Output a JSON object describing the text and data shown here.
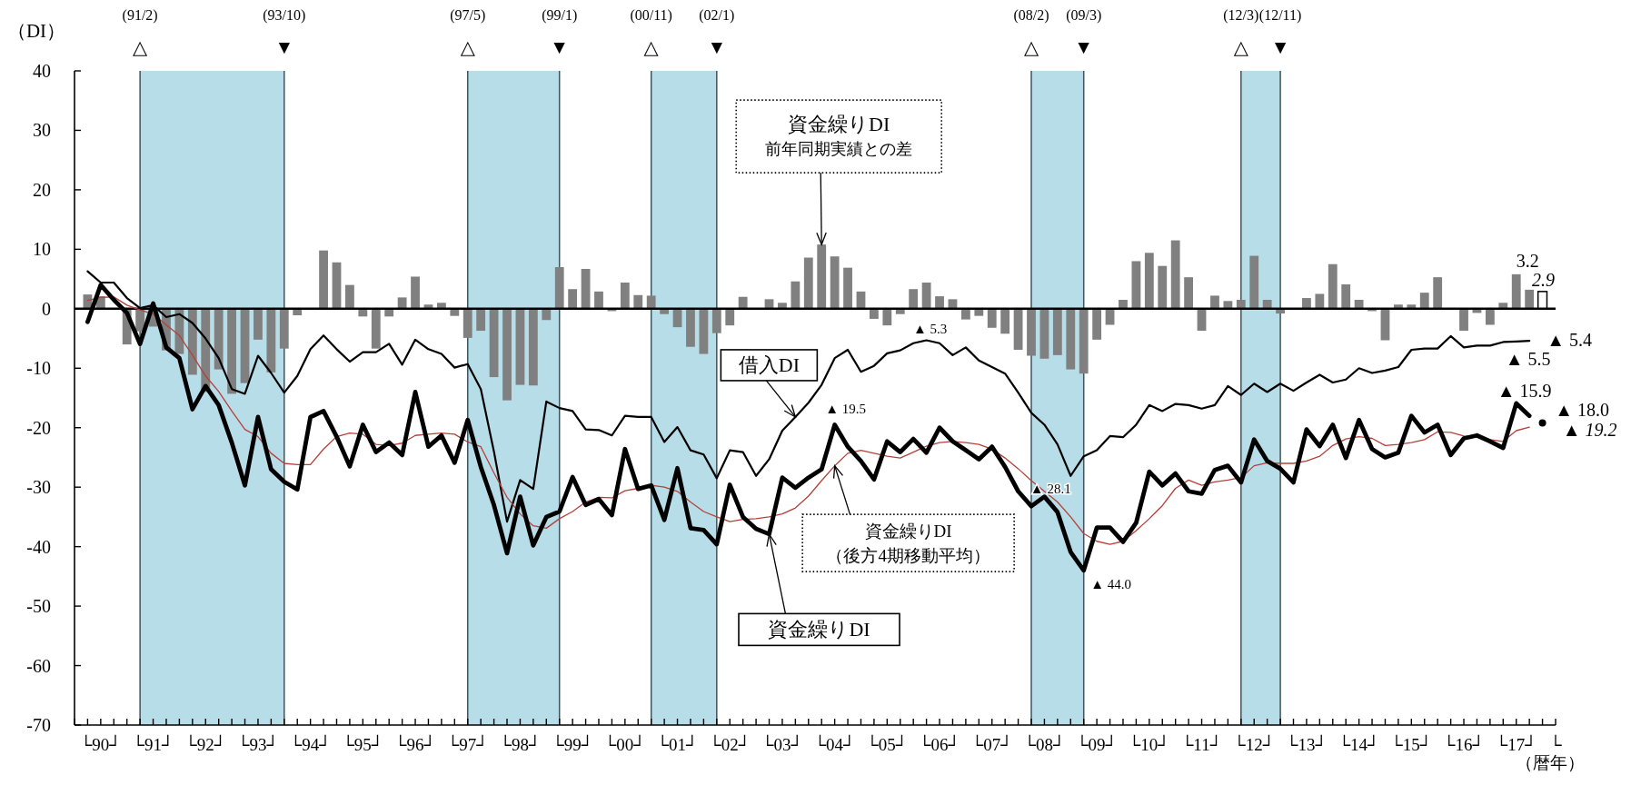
{
  "chart_data": {
    "type": "line",
    "ylabel": "（DI）",
    "xlabel": "（暦年）",
    "xlim": [
      "1990-01",
      "2018-04"
    ],
    "ylim": [
      -70,
      40
    ],
    "yticks": [
      -70,
      -60,
      -50,
      -40,
      -30,
      -20,
      -10,
      0,
      10,
      20,
      30,
      40
    ],
    "xticks": [
      {
        "value": "1990-01",
        "label": null
      },
      {
        "value": "1990-04",
        "label": null
      },
      {
        "value": "1990-07",
        "label": "└90┘"
      },
      {
        "value": "1990-10",
        "label": null
      },
      {
        "value": "1991-01",
        "label": null
      },
      {
        "value": "1991-04",
        "label": null
      },
      {
        "value": "1991-07",
        "label": "└91┘"
      },
      {
        "value": "1991-10",
        "label": null
      },
      {
        "value": "1992-01",
        "label": null
      },
      {
        "value": "1992-04",
        "label": null
      },
      {
        "value": "1992-07",
        "label": "└92┘"
      },
      {
        "value": "1992-10",
        "label": null
      },
      {
        "value": "1993-01",
        "label": null
      },
      {
        "value": "1993-04",
        "label": null
      },
      {
        "value": "1993-07",
        "label": "└93┘"
      },
      {
        "value": "1993-10",
        "label": null
      },
      {
        "value": "1994-01",
        "label": null
      },
      {
        "value": "1994-04",
        "label": null
      },
      {
        "value": "1994-07",
        "label": "└94┘"
      },
      {
        "value": "1994-10",
        "label": null
      },
      {
        "value": "1995-01",
        "label": null
      },
      {
        "value": "1995-04",
        "label": null
      },
      {
        "value": "1995-07",
        "label": "└95┘"
      },
      {
        "value": "1995-10",
        "label": null
      },
      {
        "value": "1996-01",
        "label": null
      },
      {
        "value": "1996-04",
        "label": null
      },
      {
        "value": "1996-07",
        "label": "└96┘"
      },
      {
        "value": "1996-10",
        "label": null
      },
      {
        "value": "1997-01",
        "label": null
      },
      {
        "value": "1997-04",
        "label": null
      },
      {
        "value": "1997-07",
        "label": "└97┘"
      },
      {
        "value": "1997-10",
        "label": null
      },
      {
        "value": "1998-01",
        "label": null
      },
      {
        "value": "1998-04",
        "label": null
      },
      {
        "value": "1998-07",
        "label": "└98┘"
      },
      {
        "value": "1998-10",
        "label": null
      },
      {
        "value": "1999-01",
        "label": null
      },
      {
        "value": "1999-04",
        "label": null
      },
      {
        "value": "1999-07",
        "label": "└99┘"
      },
      {
        "value": "1999-10",
        "label": null
      },
      {
        "value": "2000-01",
        "label": null
      },
      {
        "value": "2000-04",
        "label": null
      },
      {
        "value": "2000-07",
        "label": "└00┘"
      },
      {
        "value": "2000-10",
        "label": null
      },
      {
        "value": "2001-01",
        "label": null
      },
      {
        "value": "2001-04",
        "label": null
      },
      {
        "value": "2001-07",
        "label": "└01┘"
      },
      {
        "value": "2001-10",
        "label": null
      },
      {
        "value": "2002-01",
        "label": null
      },
      {
        "value": "2002-04",
        "label": null
      },
      {
        "value": "2002-07",
        "label": "└02┘"
      },
      {
        "value": "2002-10",
        "label": null
      },
      {
        "value": "2003-01",
        "label": null
      },
      {
        "value": "2003-04",
        "label": null
      },
      {
        "value": "2003-07",
        "label": "└03┘"
      },
      {
        "value": "2003-10",
        "label": null
      },
      {
        "value": "2004-01",
        "label": null
      },
      {
        "value": "2004-04",
        "label": null
      },
      {
        "value": "2004-07",
        "label": "└04┘"
      },
      {
        "value": "2004-10",
        "label": null
      },
      {
        "value": "2005-01",
        "label": null
      },
      {
        "value": "2005-04",
        "label": null
      },
      {
        "value": "2005-07",
        "label": "└05┘"
      },
      {
        "value": "2005-10",
        "label": null
      },
      {
        "value": "2006-01",
        "label": null
      },
      {
        "value": "2006-04",
        "label": null
      },
      {
        "value": "2006-07",
        "label": "└06┘"
      },
      {
        "value": "2006-10",
        "label": null
      },
      {
        "value": "2007-01",
        "label": null
      },
      {
        "value": "2007-04",
        "label": null
      },
      {
        "value": "2007-07",
        "label": "└07┘"
      },
      {
        "value": "2007-10",
        "label": null
      },
      {
        "value": "2008-01",
        "label": null
      },
      {
        "value": "2008-04",
        "label": null
      },
      {
        "value": "2008-07",
        "label": "└08┘"
      },
      {
        "value": "2008-10",
        "label": null
      },
      {
        "value": "2009-01",
        "label": null
      },
      {
        "value": "2009-04",
        "label": null
      },
      {
        "value": "2009-07",
        "label": "└09┘"
      },
      {
        "value": "2009-10",
        "label": null
      },
      {
        "value": "2010-01",
        "label": null
      },
      {
        "value": "2010-04",
        "label": null
      },
      {
        "value": "2010-07",
        "label": "└10┘"
      },
      {
        "value": "2010-10",
        "label": null
      },
      {
        "value": "2011-01",
        "label": null
      },
      {
        "value": "2011-04",
        "label": null
      },
      {
        "value": "2011-07",
        "label": "└11┘"
      },
      {
        "value": "2011-10",
        "label": null
      },
      {
        "value": "2012-01",
        "label": null
      },
      {
        "value": "2012-04",
        "label": null
      },
      {
        "value": "2012-07",
        "label": "└12┘"
      },
      {
        "value": "2012-10",
        "label": null
      },
      {
        "value": "2013-01",
        "label": null
      },
      {
        "value": "2013-04",
        "label": null
      },
      {
        "value": "2013-07",
        "label": "└13┘"
      },
      {
        "value": "2013-10",
        "label": null
      },
      {
        "value": "2014-01",
        "label": null
      },
      {
        "value": "2014-04",
        "label": null
      },
      {
        "value": "2014-07",
        "label": "└14┘"
      },
      {
        "value": "2014-10",
        "label": null
      },
      {
        "value": "2015-01",
        "label": null
      },
      {
        "value": "2015-04",
        "label": null
      },
      {
        "value": "2015-07",
        "label": "└15┘"
      },
      {
        "value": "2015-10",
        "label": null
      },
      {
        "value": "2016-01",
        "label": null
      },
      {
        "value": "2016-04",
        "label": null
      },
      {
        "value": "2016-07",
        "label": "└16┘"
      },
      {
        "value": "2016-10",
        "label": null
      },
      {
        "value": "2017-01",
        "label": null
      },
      {
        "value": "2017-04",
        "label": null
      },
      {
        "value": "2017-07",
        "label": "└17┘"
      },
      {
        "value": "2017-10",
        "label": null
      },
      {
        "value": "2018-01",
        "label": null
      },
      {
        "value": "2018-04",
        "label": "└"
      }
    ],
    "x": [
      "1990-04",
      "1990-07",
      "1990-10",
      "1991-01",
      "1991-04",
      "1991-07",
      "1991-10",
      "1992-01",
      "1992-04",
      "1992-07",
      "1992-10",
      "1993-01",
      "1993-04",
      "1993-07",
      "1993-10",
      "1994-01",
      "1994-04",
      "1994-07",
      "1994-10",
      "1995-01",
      "1995-04",
      "1995-07",
      "1995-10",
      "1996-01",
      "1996-04",
      "1996-07",
      "1996-10",
      "1997-01",
      "1997-04",
      "1997-07",
      "1997-10",
      "1998-01",
      "1998-04",
      "1998-07",
      "1998-10",
      "1999-01",
      "1999-04",
      "1999-07",
      "1999-10",
      "2000-01",
      "2000-04",
      "2000-07",
      "2000-10",
      "2001-01",
      "2001-04",
      "2001-07",
      "2001-10",
      "2002-01",
      "2002-04",
      "2002-07",
      "2002-10",
      "2003-01",
      "2003-04",
      "2003-07",
      "2003-10",
      "2004-01",
      "2004-04",
      "2004-07",
      "2004-10",
      "2005-01",
      "2005-04",
      "2005-07",
      "2005-10",
      "2006-01",
      "2006-04",
      "2006-07",
      "2006-10",
      "2007-01",
      "2007-04",
      "2007-07",
      "2007-10",
      "2008-01",
      "2008-04",
      "2008-07",
      "2008-10",
      "2009-01",
      "2009-04",
      "2009-07",
      "2009-10",
      "2010-01",
      "2010-04",
      "2010-07",
      "2010-10",
      "2011-01",
      "2011-04",
      "2011-07",
      "2011-10",
      "2012-01",
      "2012-04",
      "2012-07",
      "2012-10",
      "2013-01",
      "2013-04",
      "2013-07",
      "2013-10",
      "2014-01",
      "2014-04",
      "2014-07",
      "2014-10",
      "2015-01",
      "2015-04",
      "2015-07",
      "2015-10",
      "2016-01",
      "2016-04",
      "2016-07",
      "2016-10",
      "2017-01",
      "2017-04",
      "2017-07",
      "2017-10"
    ],
    "bands": [
      {
        "axis": "x",
        "from": "1991-04",
        "to": "1994-01",
        "color": "#b7dde8"
      },
      {
        "axis": "x",
        "from": "1997-07",
        "to": "1999-04",
        "color": "#b7dde8"
      },
      {
        "axis": "x",
        "from": "2001-01",
        "to": "2002-04",
        "color": "#b7dde8"
      },
      {
        "axis": "x",
        "from": "2008-04",
        "to": "2009-04",
        "color": "#b7dde8"
      },
      {
        "axis": "x",
        "from": "2012-04",
        "to": "2013-01",
        "color": "#b7dde8"
      }
    ],
    "ref_lines": [
      {
        "axis": "x",
        "value": "1991-04",
        "label": "(91/2)\n△",
        "color": "#3c5560"
      },
      {
        "axis": "x",
        "value": "1994-01",
        "label": "(93/10)\n▼",
        "color": "#3c5560"
      },
      {
        "axis": "x",
        "value": "1997-07",
        "label": "(97/5)\n△",
        "color": "#3c5560"
      },
      {
        "axis": "x",
        "value": "1999-04",
        "label": "(99/1)\n▼",
        "color": "#3c5560"
      },
      {
        "axis": "x",
        "value": "2001-01",
        "label": "(00/11)\n△",
        "color": "#3c5560"
      },
      {
        "axis": "x",
        "value": "2002-04",
        "label": "(02/1)\n▼",
        "color": "#3c5560"
      },
      {
        "axis": "x",
        "value": "2008-04",
        "label": "(08/2)\n△",
        "color": "#3c5560"
      },
      {
        "axis": "x",
        "value": "2009-04",
        "label": "(09/3)\n▼",
        "color": "#3c5560"
      },
      {
        "axis": "x",
        "value": "2012-04",
        "label": "(12/3)\n△",
        "color": "#3c5560"
      },
      {
        "axis": "x",
        "value": "2013-01",
        "label": "(12/11)\n▼",
        "color": "#3c5560"
      },
      {
        "axis": "y",
        "value": 0,
        "color": "#000000"
      }
    ],
    "series": [
      {
        "type": "bar",
        "color": "#808080",
        "values": [
          2.4,
          2.1,
          null,
          -6.0,
          -3.8,
          -3.0,
          -7.0,
          -7.6,
          -11.1,
          -14.0,
          -10.2,
          -14.3,
          -12.5,
          -5.2,
          -10.7,
          -6.7,
          -1.1,
          null,
          9.8,
          7.8,
          4.0,
          -1.3,
          -6.7,
          -1.3,
          1.9,
          5.4,
          0.7,
          1.0,
          -1.2,
          -4.9,
          -3.7,
          -11.5,
          -15.4,
          -12.8,
          -12.9,
          -1.9,
          7.0,
          3.3,
          6.7,
          2.9,
          -0.4,
          4.4,
          2.3,
          2.2,
          -0.9,
          -3.1,
          -6.4,
          -7.6,
          -4.1,
          -2.8,
          2.0,
          null,
          1.6,
          1.0,
          4.6,
          8.6,
          10.8,
          8.8,
          6.9,
          2.9,
          -1.7,
          -2.8,
          -0.9,
          3.3,
          4.4,
          2.1,
          1.6,
          -1.8,
          -1.2,
          -3.2,
          -4.2,
          -6.9,
          -7.9,
          -8.4,
          -7.8,
          -10.2,
          -10.9,
          -5.2,
          -2.7,
          1.5,
          8.0,
          9.4,
          7.2,
          11.5,
          5.3,
          -3.7,
          2.2,
          1.3,
          1.5,
          8.9,
          1.5,
          -0.8,
          null,
          1.8,
          2.5,
          7.5,
          4.1,
          1.5,
          -0.4,
          -5.3,
          0.7,
          0.7,
          2.7,
          5.3,
          null,
          -3.7,
          -0.7,
          -2.7,
          1.0,
          5.8,
          3.2
        ]
      },
      {
        "type": "bar",
        "color": "#ffffff",
        "x": [
          "2018-01"
        ],
        "values": [
          2.9
        ]
      },
      {
        "color": "#000000",
        "values": [
          6.3,
          4.4,
          4.4,
          1.8,
          0.1,
          0.6,
          -1.4,
          -0.9,
          -2.4,
          -5.0,
          -8.3,
          -13.5,
          -14.3,
          -7.9,
          -10.8,
          -14.1,
          -11.3,
          -6.8,
          -4.5,
          -6.8,
          -8.9,
          -7.3,
          -7.3,
          -5.9,
          -9.4,
          -5.2,
          -6.8,
          -7.6,
          -9.9,
          -9.3,
          -13.5,
          -24.0,
          -35.8,
          -28.8,
          -30.3,
          -15.6,
          -16.7,
          -17.2,
          -20.3,
          -20.4,
          -21.3,
          -18.0,
          -18.2,
          -18.2,
          -22.4,
          -19.9,
          -23.8,
          -24.5,
          -28.5,
          -23.8,
          -24.1,
          -28.1,
          -25.3,
          -20.5,
          -18.2,
          -15.8,
          -12.8,
          -8.3,
          -6.9,
          -10.6,
          -9.6,
          -7.5,
          -7.0,
          -5.8,
          -5.3,
          -5.8,
          -7.8,
          -6.5,
          -8.7,
          -9.8,
          -10.9,
          -14.1,
          -17.5,
          -19.5,
          -22.8,
          -28.1,
          -24.8,
          -23.8,
          -21.4,
          -21.6,
          -19.5,
          -16.2,
          -17.2,
          -16.0,
          -16.2,
          -16.8,
          -16.2,
          -13.0,
          -14.5,
          -12.6,
          -14.0,
          -12.6,
          -13.8,
          -12.4,
          -11.1,
          -12.4,
          -11.9,
          -10.0,
          -10.8,
          -10.4,
          -9.8,
          -6.9,
          -6.7,
          -6.7,
          -4.6,
          -6.5,
          -6.2,
          -6.2,
          -5.6,
          -5.5,
          -5.4
        ]
      },
      {
        "color": "#b5403a",
        "values": [
          1.4,
          1.9,
          2.0,
          0.6,
          -0.2,
          -0.9,
          -2.7,
          -4.5,
          -7.8,
          -11.3,
          -13.9,
          -17.2,
          -20.3,
          -21.5,
          -24.3,
          -26.0,
          -26.2,
          -26.2,
          -23.6,
          -21.5,
          -20.9,
          -21.1,
          -22.8,
          -23.0,
          -22.6,
          -21.3,
          -21.1,
          -20.9,
          -21.1,
          -22.4,
          -23.2,
          -27.6,
          -31.7,
          -34.5,
          -36.5,
          -36.9,
          -35.3,
          -34.1,
          -32.5,
          -31.7,
          -31.8,
          -30.6,
          -30.2,
          -29.7,
          -30.0,
          -30.7,
          -32.5,
          -34.1,
          -35.0,
          -35.8,
          -35.4,
          -35.3,
          -35.0,
          -34.5,
          -33.5,
          -31.5,
          -28.9,
          -26.4,
          -24.3,
          -23.8,
          -24.3,
          -24.8,
          -25.1,
          -24.1,
          -23.1,
          -22.5,
          -22.3,
          -22.5,
          -22.8,
          -23.6,
          -25.1,
          -26.9,
          -28.9,
          -30.7,
          -32.5,
          -35.0,
          -37.8,
          -39.1,
          -39.6,
          -39.1,
          -37.3,
          -35.3,
          -33.1,
          -30.2,
          -28.8,
          -29.7,
          -29.1,
          -28.8,
          -28.4,
          -26.4,
          -25.9,
          -26.0,
          -26.0,
          -25.6,
          -24.8,
          -23.0,
          -21.9,
          -21.5,
          -21.8,
          -23.0,
          -22.8,
          -22.5,
          -22.0,
          -20.7,
          -20.8,
          -21.4,
          -21.6,
          -22.0,
          -22.3,
          -20.5,
          -19.9
        ]
      },
      {
        "color": "#000000",
        "values": [
          -2.2,
          4.0,
          1.5,
          -0.7,
          -5.9,
          0.9,
          -6.5,
          -8.3,
          -16.9,
          -13.0,
          -16.2,
          -22.5,
          -29.7,
          -18.2,
          -27.0,
          -29.1,
          -30.4,
          -18.2,
          -17.2,
          -21.5,
          -26.5,
          -19.5,
          -24.1,
          -22.5,
          -24.6,
          -14.0,
          -23.2,
          -21.3,
          -25.9,
          -18.7,
          -26.6,
          -33.0,
          -41.1,
          -31.6,
          -39.8,
          -35.0,
          -34.1,
          -28.3,
          -33.0,
          -32.0,
          -34.7,
          -23.6,
          -30.3,
          -29.7,
          -35.5,
          -26.8,
          -36.9,
          -37.2,
          -39.6,
          -29.6,
          -35.0,
          -37.0,
          -37.9,
          -28.4,
          -30.1,
          -28.4,
          -27.0,
          -19.5,
          -23.2,
          -25.6,
          -28.7,
          -22.3,
          -24.1,
          -21.9,
          -24.2,
          -20.0,
          -22.3,
          -23.8,
          -25.3,
          -23.2,
          -26.6,
          -30.7,
          -33.2,
          -31.6,
          -34.2,
          -40.9,
          -44.0,
          -36.8,
          -36.8,
          -39.2,
          -36.0,
          -27.4,
          -29.7,
          -27.7,
          -30.7,
          -31.1,
          -27.1,
          -26.4,
          -29.2,
          -22.0,
          -25.6,
          -26.9,
          -29.2,
          -20.3,
          -23.1,
          -19.5,
          -25.1,
          -18.7,
          -23.6,
          -25.0,
          -24.2,
          -18.0,
          -20.8,
          -19.5,
          -24.6,
          -21.8,
          -21.3,
          -22.3,
          -23.4,
          -15.9,
          -18.0
        ]
      },
      {
        "type": "scatter",
        "color": "#000000",
        "marker": "circle",
        "x": [
          "2018-01"
        ],
        "values": [
          -19.2
        ]
      }
    ],
    "annotations": [
      {
        "text": "資金繰りDI\n前年同期実績との差",
        "x": "2004-04",
        "y": 10.8
      },
      {
        "text": "借入DI",
        "x": "2003-10",
        "y": -18.2
      },
      {
        "text": "資金繰りDI\n（後方4期移動平均）",
        "x": "2004-07",
        "y": -26.4
      },
      {
        "text": "資金繰りDI",
        "x": "2003-04",
        "y": -37.9
      },
      {
        "text": "▲ 19.5",
        "x": "2004-07",
        "y": -19.5
      },
      {
        "text": "▲ 5.3",
        "x": "2006-04",
        "y": -5.3
      },
      {
        "text": "▲ 28.1",
        "x": "2009-01",
        "y": -28.1
      },
      {
        "text": "▲ 44.0",
        "x": "2009-04",
        "y": -44.0
      },
      {
        "text": "3.2",
        "x": "2017-10",
        "y": 3.2
      },
      {
        "text": "2.9",
        "x": "2018-01",
        "y": 2.9
      },
      {
        "text": "▲ 5.4",
        "x": "2017-10",
        "y": -5.4
      },
      {
        "text": "▲ 5.5",
        "x": "2017-07",
        "y": -5.5
      },
      {
        "text": "▲ 15.9",
        "x": "2017-07",
        "y": -15.9
      },
      {
        "text": "▲ 18.0",
        "x": "2017-10",
        "y": -18.0
      },
      {
        "text": "▲ 19.2",
        "x": "2018-01",
        "y": -19.2
      }
    ]
  }
}
